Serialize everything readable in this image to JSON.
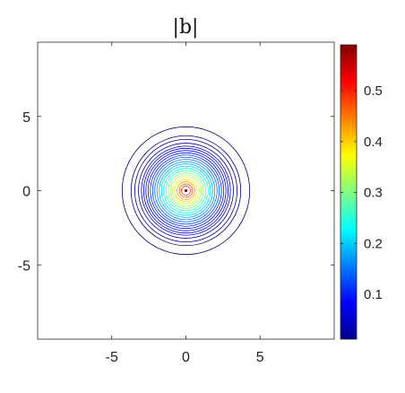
{
  "chart_data": {
    "type": "contour",
    "title": "|b|",
    "xlabel": "",
    "ylabel": "",
    "xlim": [
      -10,
      10
    ],
    "ylim": [
      -10,
      10
    ],
    "xticks": [
      -5,
      0,
      5
    ],
    "yticks": [
      -5,
      0,
      5
    ],
    "field": "radially symmetric magnitude centred at (0,0), peak ≈ 0.59, decaying to ≈ 0.01 at r ≈ 4.4",
    "contour_radii": [
      0.3,
      0.45,
      0.6,
      0.75,
      0.9,
      1.05,
      1.2,
      1.35,
      1.5,
      1.65,
      1.8,
      1.95,
      2.1,
      2.25,
      2.4,
      2.55,
      2.7,
      2.85,
      3.0,
      3.2,
      3.45,
      3.7,
      4.3
    ],
    "colorbar": {
      "colormap": "jet",
      "min": 0.012,
      "max": 0.59,
      "ticks": [
        0.1,
        0.2,
        0.3,
        0.4,
        0.5
      ],
      "tick_labels": [
        "0.1",
        "0.2",
        "0.3",
        "0.4",
        "0.5"
      ]
    },
    "grid": false
  }
}
